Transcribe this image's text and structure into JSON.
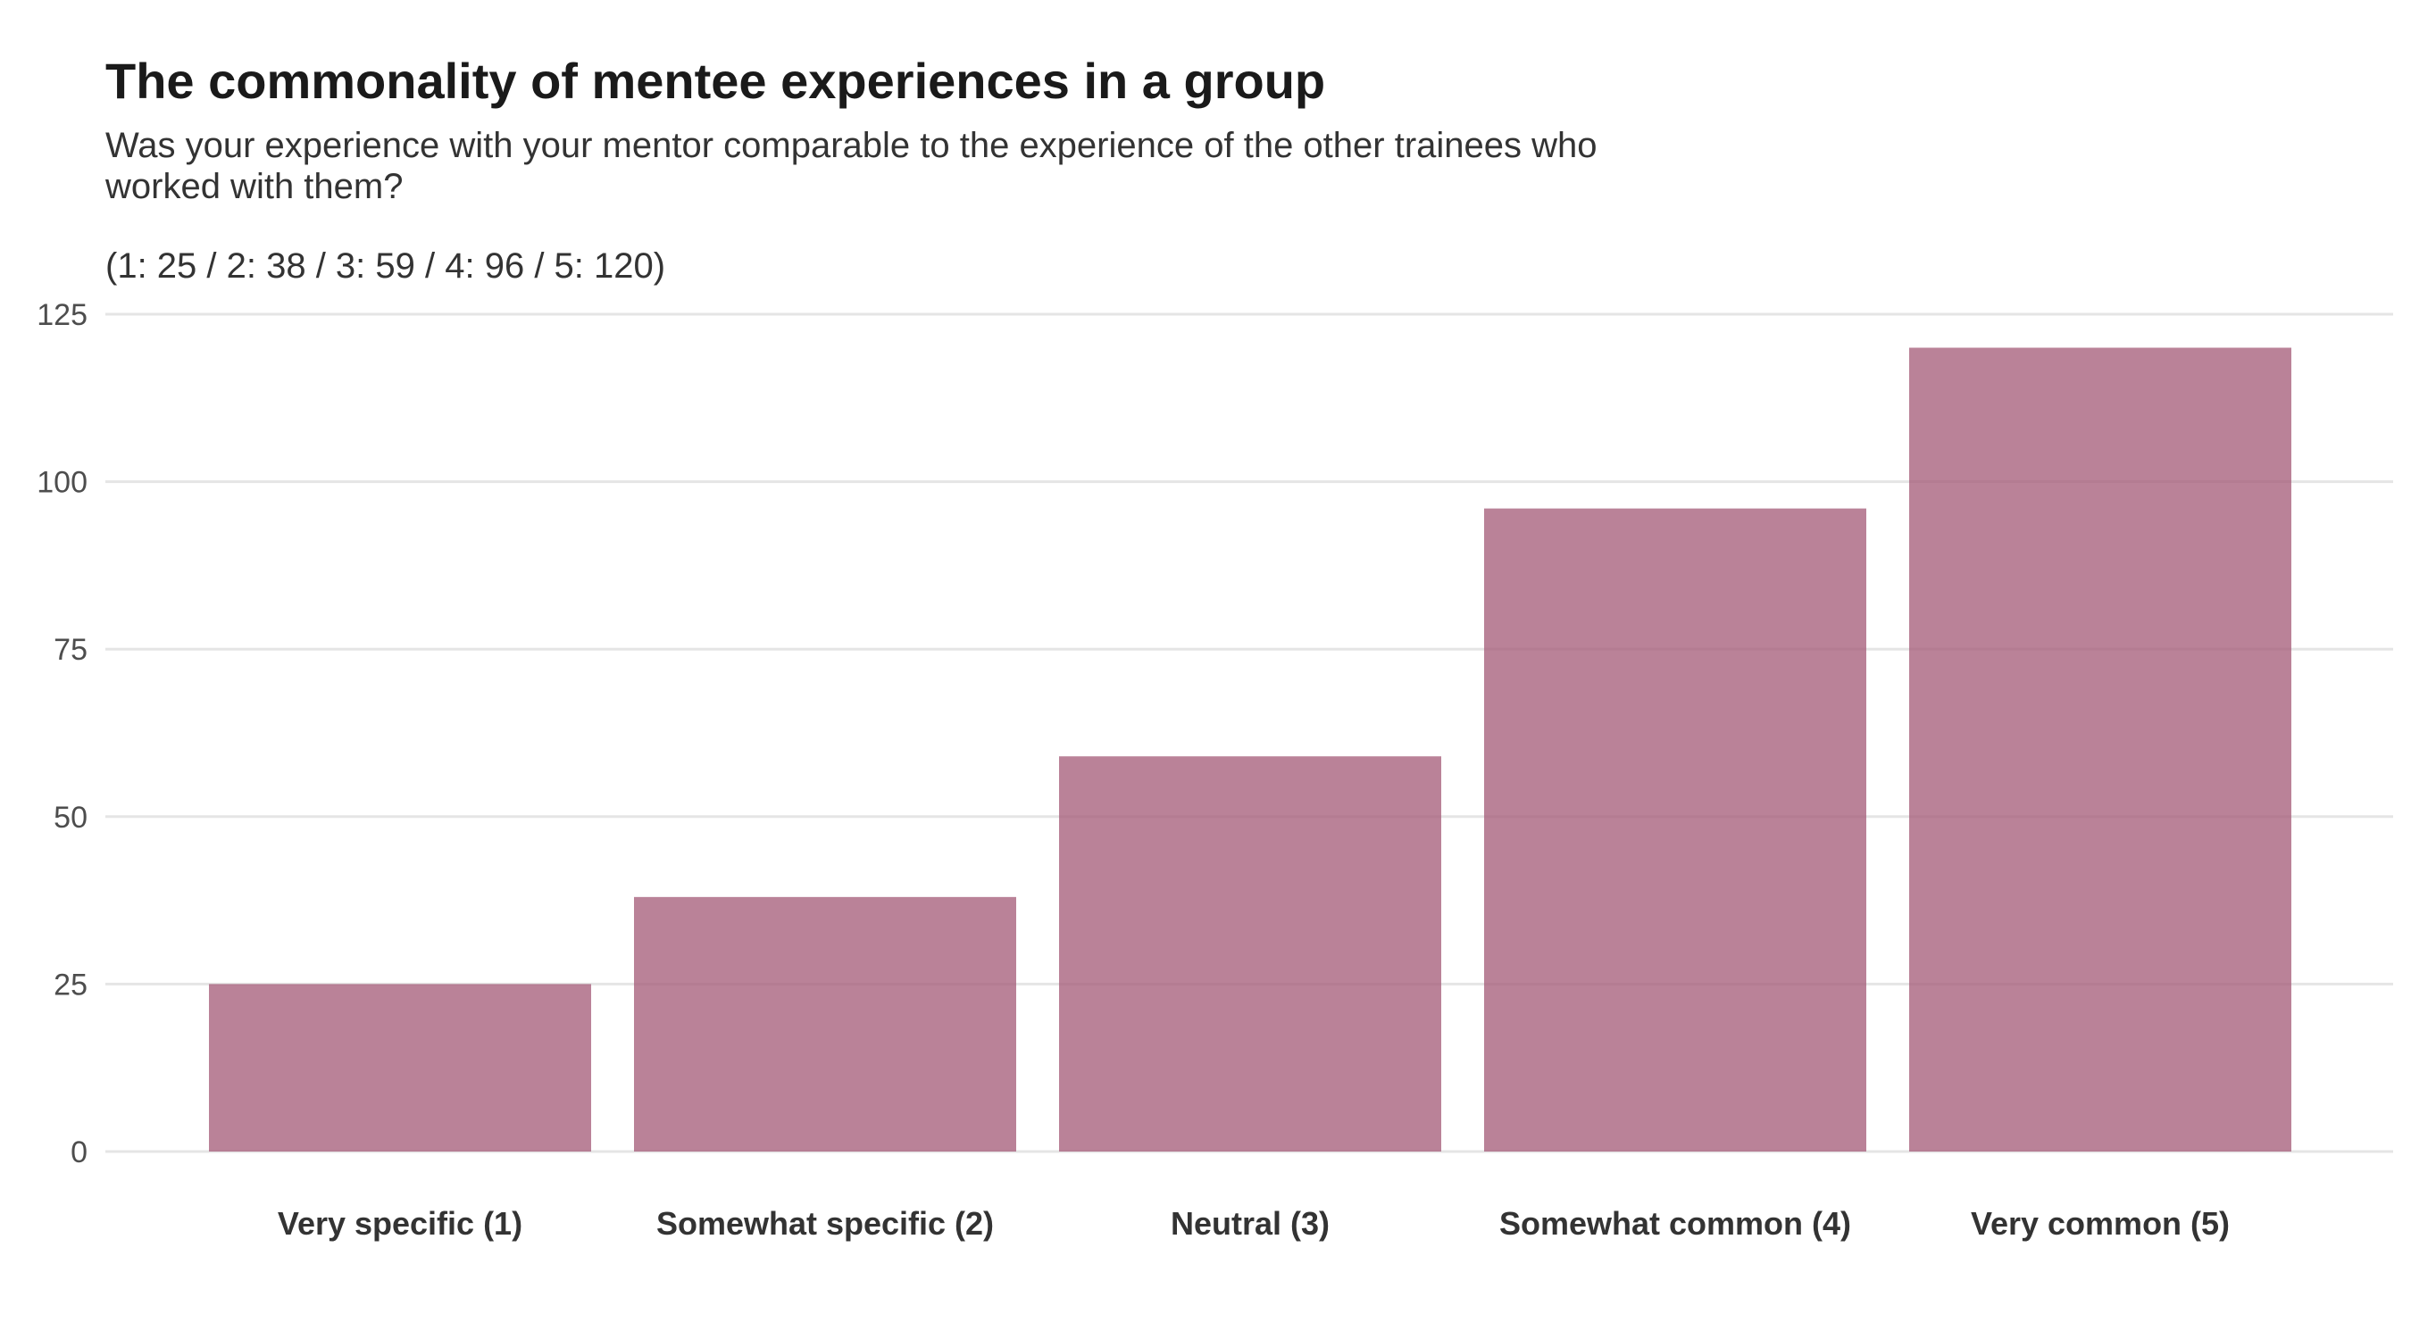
{
  "chart_data": {
    "type": "bar",
    "title": "The commonality of mentee experiences in a group",
    "subtitle": "Was your experience with your mentor comparable to the experience of the other trainees who worked with them?",
    "caption": "(1: 25 / 2: 38 / 3: 59 / 4: 96 / 5: 120)",
    "categories": [
      "Very specific (1)",
      "Somewhat specific (2)",
      "Neutral (3)",
      "Somewhat common (4)",
      "Very common (5)"
    ],
    "values": [
      25,
      38,
      59,
      96,
      120
    ],
    "yticks": [
      0,
      25,
      50,
      75,
      100,
      125
    ],
    "ylim": [
      0,
      125
    ],
    "xlabel": "",
    "ylabel": "",
    "grid": true,
    "legend": "none",
    "bar_color": "#a35876",
    "bar_opacity": 0.75,
    "grid_color": "#e5e5e5"
  }
}
